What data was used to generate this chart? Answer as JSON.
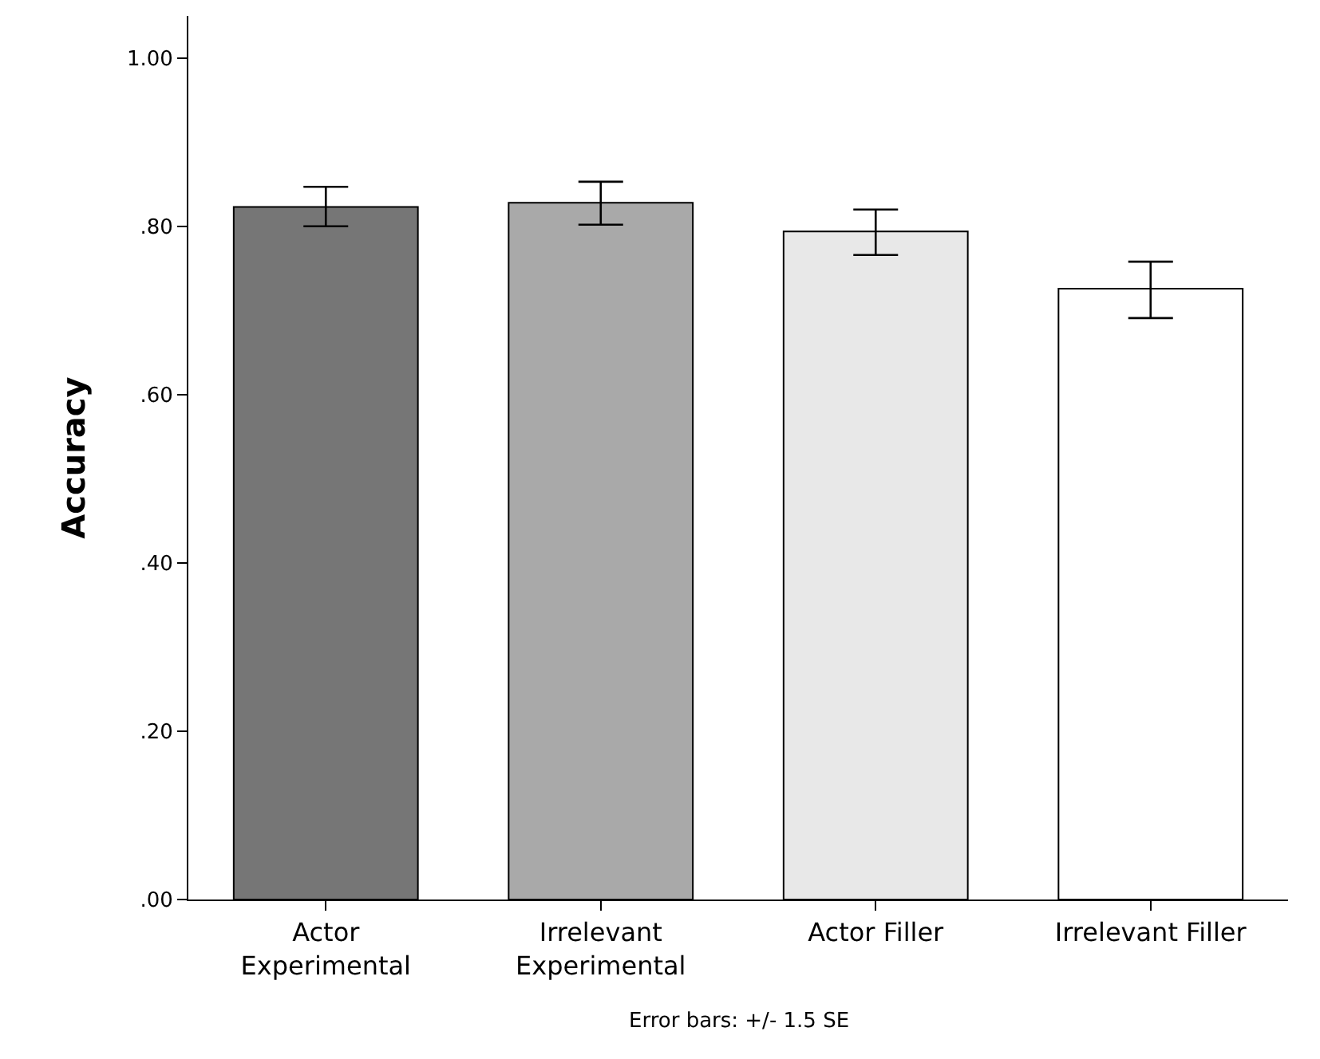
{
  "chart_data": {
    "type": "bar",
    "ylabel": "Accuracy",
    "categories": [
      "Actor Experimental",
      "Irrelevant Experimental",
      "Actor Filler",
      "Irrelevant Filler"
    ],
    "values": [
      0.823,
      0.828,
      0.794,
      0.726
    ],
    "colors": [
      "#767676",
      "#a9a9a9",
      "#e8e8e8",
      "#ffffff"
    ],
    "errors": [
      [
        0.8,
        0.847
      ],
      [
        0.802,
        0.853
      ],
      [
        0.766,
        0.82
      ],
      [
        0.691,
        0.758
      ]
    ],
    "ylim": [
      0,
      1.05
    ],
    "yticks": [
      {
        "value": 0,
        "label": ".00"
      },
      {
        "value": 0.2,
        "label": ".20"
      },
      {
        "value": 0.4,
        "label": ".40"
      },
      {
        "value": 0.6,
        "label": ".60"
      },
      {
        "value": 0.8,
        "label": ".80"
      },
      {
        "value": 1,
        "label": "1.00"
      }
    ],
    "annotations": [
      "Error bars: +/- 1.5 SE"
    ],
    "grid": false
  }
}
